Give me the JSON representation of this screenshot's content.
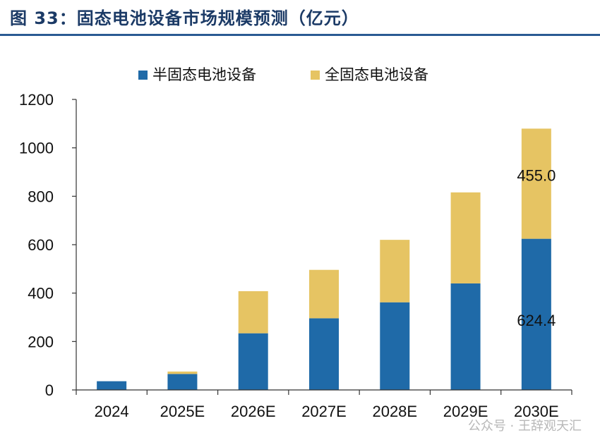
{
  "figure": {
    "title": "图  33：固态电池设备市场规模预测（亿元）"
  },
  "watermark": "公众号 · 王辞观天汇",
  "chart_data": {
    "type": "bar",
    "stacked": true,
    "categories": [
      "2024",
      "2025E",
      "2026E",
      "2027E",
      "2028E",
      "2029E",
      "2030E"
    ],
    "series": [
      {
        "name": "半固态电池设备",
        "color": "#1f6aa8",
        "values": [
          36,
          66,
          234,
          296,
          362,
          440,
          624.4
        ]
      },
      {
        "name": "全固态电池设备",
        "color": "#e6c463",
        "values": [
          0,
          10,
          174,
          200,
          258,
          376,
          455.0
        ]
      }
    ],
    "ylim": [
      0,
      1200
    ],
    "yticks": [
      0,
      200,
      400,
      600,
      800,
      1000,
      1200
    ],
    "grid": false,
    "legend_position": "top",
    "annotations": [
      {
        "category": "2030E",
        "series": "半固态电池设备",
        "text": "624.4"
      },
      {
        "category": "2030E",
        "series": "全固态电池设备",
        "text": "455.0"
      }
    ]
  }
}
